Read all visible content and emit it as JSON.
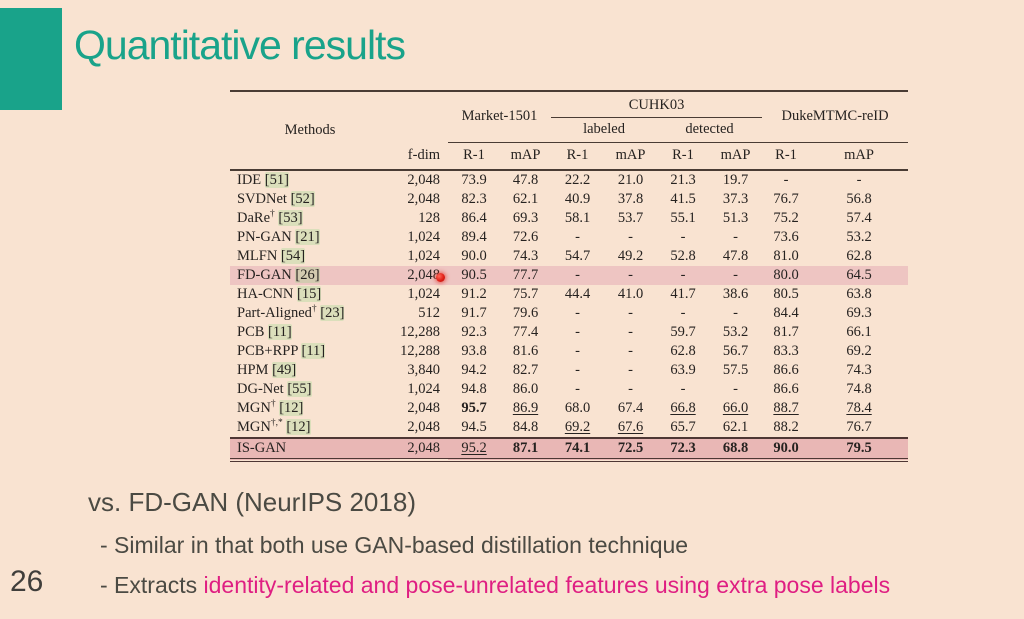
{
  "slide": {
    "title": "Quantitative results",
    "page_number": "26"
  },
  "table": {
    "header": {
      "methods": "Methods",
      "fdim": "f-dim",
      "market": "Market-1501",
      "cuhk": "CUHK03",
      "labeled": "labeled",
      "detected": "detected",
      "duke": "DukeMTMC-reID",
      "metrics": [
        "R-1",
        "mAP",
        "R-1",
        "mAP",
        "R-1",
        "mAP",
        "R-1",
        "mAP"
      ]
    },
    "rows": [
      {
        "method": "IDE",
        "sup": "",
        "cite": "[51]",
        "fdim": "2,048",
        "cells": [
          {
            "v": "73.9"
          },
          {
            "v": "47.8"
          },
          {
            "v": "22.2"
          },
          {
            "v": "21.0"
          },
          {
            "v": "21.3"
          },
          {
            "v": "19.7"
          },
          {
            "v": "-"
          },
          {
            "v": "-"
          }
        ]
      },
      {
        "method": "SVDNet",
        "sup": "",
        "cite": "[52]",
        "fdim": "2,048",
        "cells": [
          {
            "v": "82.3"
          },
          {
            "v": "62.1"
          },
          {
            "v": "40.9"
          },
          {
            "v": "37.8"
          },
          {
            "v": "41.5"
          },
          {
            "v": "37.3"
          },
          {
            "v": "76.7"
          },
          {
            "v": "56.8"
          }
        ]
      },
      {
        "method": "DaRe",
        "sup": "†",
        "cite": "[53]",
        "fdim": "128",
        "cells": [
          {
            "v": "86.4"
          },
          {
            "v": "69.3"
          },
          {
            "v": "58.1"
          },
          {
            "v": "53.7"
          },
          {
            "v": "55.1"
          },
          {
            "v": "51.3"
          },
          {
            "v": "75.2"
          },
          {
            "v": "57.4"
          }
        ]
      },
      {
        "method": "PN-GAN",
        "sup": "",
        "cite": "[21]",
        "fdim": "1,024",
        "cells": [
          {
            "v": "89.4"
          },
          {
            "v": "72.6"
          },
          {
            "v": "-"
          },
          {
            "v": "-"
          },
          {
            "v": "-"
          },
          {
            "v": "-"
          },
          {
            "v": "73.6"
          },
          {
            "v": "53.2"
          }
        ]
      },
      {
        "method": "MLFN",
        "sup": "",
        "cite": "[54]",
        "fdim": "1,024",
        "cells": [
          {
            "v": "90.0"
          },
          {
            "v": "74.3"
          },
          {
            "v": "54.7"
          },
          {
            "v": "49.2"
          },
          {
            "v": "52.8"
          },
          {
            "v": "47.8"
          },
          {
            "v": "81.0"
          },
          {
            "v": "62.8"
          }
        ]
      },
      {
        "method": "FD-GAN",
        "sup": "",
        "cite": "[26]",
        "fdim": "2,048",
        "highlight": "light",
        "dot": true,
        "cells": [
          {
            "v": "90.5"
          },
          {
            "v": "77.7"
          },
          {
            "v": "-"
          },
          {
            "v": "-"
          },
          {
            "v": "-"
          },
          {
            "v": "-"
          },
          {
            "v": "80.0"
          },
          {
            "v": "64.5"
          }
        ]
      },
      {
        "method": "HA-CNN",
        "sup": "",
        "cite": "[15]",
        "fdim": "1,024",
        "cells": [
          {
            "v": "91.2"
          },
          {
            "v": "75.7"
          },
          {
            "v": "44.4"
          },
          {
            "v": "41.0"
          },
          {
            "v": "41.7"
          },
          {
            "v": "38.6"
          },
          {
            "v": "80.5"
          },
          {
            "v": "63.8"
          }
        ]
      },
      {
        "method": "Part-Aligned",
        "sup": "†",
        "cite": "[23]",
        "fdim": "512",
        "cells": [
          {
            "v": "91.7"
          },
          {
            "v": "79.6"
          },
          {
            "v": "-"
          },
          {
            "v": "-"
          },
          {
            "v": "-"
          },
          {
            "v": "-"
          },
          {
            "v": "84.4"
          },
          {
            "v": "69.3"
          }
        ]
      },
      {
        "method": "PCB",
        "sup": "",
        "cite": "[11]",
        "fdim": "12,288",
        "cells": [
          {
            "v": "92.3"
          },
          {
            "v": "77.4"
          },
          {
            "v": "-"
          },
          {
            "v": "-"
          },
          {
            "v": "59.7"
          },
          {
            "v": "53.2"
          },
          {
            "v": "81.7"
          },
          {
            "v": "66.1"
          }
        ]
      },
      {
        "method": "PCB+RPP",
        "sup": "",
        "cite": "[11]",
        "fdim": "12,288",
        "cells": [
          {
            "v": "93.8"
          },
          {
            "v": "81.6"
          },
          {
            "v": "-"
          },
          {
            "v": "-"
          },
          {
            "v": "62.8"
          },
          {
            "v": "56.7"
          },
          {
            "v": "83.3"
          },
          {
            "v": "69.2"
          }
        ]
      },
      {
        "method": "HPM",
        "sup": "",
        "cite": "[49]",
        "fdim": "3,840",
        "cells": [
          {
            "v": "94.2"
          },
          {
            "v": "82.7"
          },
          {
            "v": "-"
          },
          {
            "v": "-"
          },
          {
            "v": "63.9"
          },
          {
            "v": "57.5"
          },
          {
            "v": "86.6"
          },
          {
            "v": "74.3"
          }
        ]
      },
      {
        "method": "DG-Net",
        "sup": "",
        "cite": "[55]",
        "fdim": "1,024",
        "cells": [
          {
            "v": "94.8"
          },
          {
            "v": "86.0"
          },
          {
            "v": "-"
          },
          {
            "v": "-"
          },
          {
            "v": "-"
          },
          {
            "v": "-"
          },
          {
            "v": "86.6"
          },
          {
            "v": "74.8"
          }
        ]
      },
      {
        "method": "MGN",
        "sup": "†",
        "cite": "[12]",
        "fdim": "2,048",
        "cells": [
          {
            "v": "95.7",
            "b": true
          },
          {
            "v": "86.9",
            "u": true
          },
          {
            "v": "68.0"
          },
          {
            "v": "67.4"
          },
          {
            "v": "66.8",
            "u": true
          },
          {
            "v": "66.0",
            "u": true
          },
          {
            "v": "88.7",
            "u": true
          },
          {
            "v": "78.4",
            "u": true
          }
        ]
      },
      {
        "method": "MGN",
        "sup": "†,*",
        "cite": "[12]",
        "fdim": "2,048",
        "cells": [
          {
            "v": "94.5"
          },
          {
            "v": "84.8"
          },
          {
            "v": "69.2",
            "u": true
          },
          {
            "v": "67.6",
            "u": true
          },
          {
            "v": "65.7"
          },
          {
            "v": "62.1"
          },
          {
            "v": "88.2"
          },
          {
            "v": "76.7"
          }
        ]
      },
      {
        "method": "IS-GAN",
        "sup": "",
        "cite": "",
        "fdim": "2,048",
        "highlight": "strong",
        "cells": [
          {
            "v": "95.2",
            "u": true
          },
          {
            "v": "87.1",
            "b": true
          },
          {
            "v": "74.1",
            "b": true
          },
          {
            "v": "72.5",
            "b": true
          },
          {
            "v": "72.3",
            "b": true
          },
          {
            "v": "68.8",
            "b": true
          },
          {
            "v": "90.0",
            "b": true
          },
          {
            "v": "79.5",
            "b": true
          }
        ]
      }
    ]
  },
  "notes": {
    "heading": "vs. FD-GAN (NeurIPS 2018)",
    "bullet1": "- Similar in that both use GAN-based distillation technique",
    "bullet2_prefix": "- Extracts ",
    "bullet2_highlight": "identity-related and pose-unrelated features using extra pose labels"
  },
  "colors": {
    "background": "#f9e3d1",
    "accent_teal": "#19a38a",
    "table_ink": "#262220",
    "rule": "#4a3c34",
    "highlight_pink_light": "#eec5c2",
    "highlight_pink_strong": "#e9b7b5",
    "magenta": "#df1e82",
    "laser_red": "#e01f17"
  }
}
